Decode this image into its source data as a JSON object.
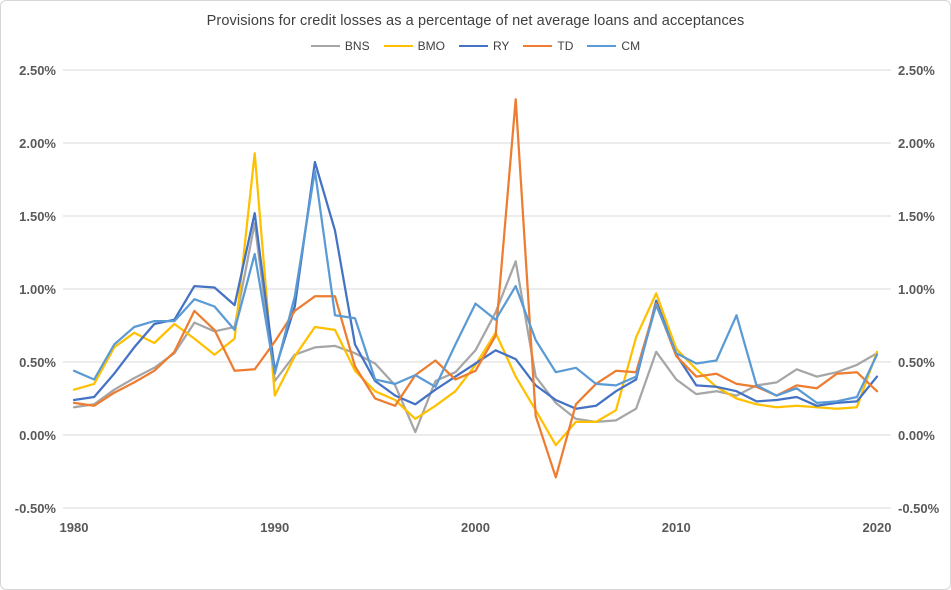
{
  "chart_data": {
    "type": "line",
    "title": "Provisions for credit losses as a percentage of net average loans and acceptances",
    "grid": true,
    "legend_position": "top",
    "gridline_color": "#d9d9d9",
    "tick_label_color": "#595959",
    "x": [
      1980,
      1981,
      1982,
      1983,
      1984,
      1985,
      1986,
      1987,
      1988,
      1989,
      1990,
      1991,
      1992,
      1993,
      1994,
      1995,
      1996,
      1997,
      1998,
      1999,
      2000,
      2001,
      2002,
      2003,
      2004,
      2005,
      2006,
      2007,
      2008,
      2009,
      2010,
      2011,
      2012,
      2013,
      2014,
      2015,
      2016,
      2017,
      2018,
      2019,
      2020
    ],
    "x_axis": {
      "tick_labels": [
        "1980",
        "1990",
        "2000",
        "2010",
        "2020"
      ]
    },
    "y_axis": {
      "min": -0.5,
      "max": 2.5,
      "step": 0.5,
      "unit": "%",
      "tick_labels": [
        "2.50%",
        "2.00%",
        "1.50%",
        "1.00%",
        "0.50%",
        "0.00%",
        "-0.50%"
      ]
    },
    "series": [
      {
        "name": "BNS",
        "color": "#a6a6a6",
        "values": [
          0.19,
          0.21,
          0.31,
          0.39,
          0.46,
          0.56,
          0.77,
          0.71,
          0.74,
          1.45,
          0.37,
          0.55,
          0.6,
          0.61,
          0.56,
          0.49,
          0.34,
          0.02,
          0.37,
          0.43,
          0.58,
          0.84,
          1.19,
          0.4,
          0.22,
          0.11,
          0.09,
          0.1,
          0.18,
          0.57,
          0.38,
          0.28,
          0.3,
          0.27,
          0.34,
          0.36,
          0.45,
          0.4,
          0.43,
          0.48,
          0.56
        ]
      },
      {
        "name": "BMO",
        "color": "#ffc000",
        "values": [
          0.31,
          0.35,
          0.6,
          0.7,
          0.63,
          0.76,
          0.66,
          0.55,
          0.66,
          1.93,
          0.27,
          0.54,
          0.74,
          0.72,
          0.44,
          0.3,
          0.24,
          0.11,
          0.2,
          0.3,
          0.48,
          0.7,
          0.4,
          0.17,
          -0.07,
          0.09,
          0.09,
          0.17,
          0.67,
          0.97,
          0.59,
          0.45,
          0.33,
          0.25,
          0.21,
          0.19,
          0.2,
          0.19,
          0.18,
          0.19,
          0.57
        ]
      },
      {
        "name": "RY",
        "color": "#4472c4",
        "values": [
          0.24,
          0.26,
          0.42,
          0.6,
          0.76,
          0.79,
          1.02,
          1.01,
          0.89,
          1.52,
          0.44,
          0.88,
          1.87,
          1.4,
          0.62,
          0.37,
          0.27,
          0.21,
          0.31,
          0.4,
          0.49,
          0.58,
          0.52,
          0.34,
          0.24,
          0.18,
          0.2,
          0.3,
          0.38,
          0.92,
          0.55,
          0.34,
          0.33,
          0.3,
          0.23,
          0.24,
          0.26,
          0.2,
          0.22,
          0.23,
          0.4
        ]
      },
      {
        "name": "TD",
        "color": "#ed7d31",
        "values": [
          0.22,
          0.2,
          0.29,
          0.36,
          0.44,
          0.57,
          0.85,
          0.72,
          0.44,
          0.45,
          0.64,
          0.85,
          0.95,
          0.95,
          0.47,
          0.25,
          0.2,
          0.41,
          0.51,
          0.38,
          0.44,
          0.68,
          2.3,
          0.13,
          -0.29,
          0.21,
          0.35,
          0.44,
          0.43,
          0.9,
          0.54,
          0.4,
          0.42,
          0.35,
          0.33,
          0.27,
          0.34,
          0.32,
          0.42,
          0.43,
          0.3
        ]
      },
      {
        "name": "CM",
        "color": "#5b9bd5",
        "values": [
          0.44,
          0.38,
          0.62,
          0.74,
          0.78,
          0.78,
          0.93,
          0.88,
          0.72,
          1.24,
          0.42,
          0.95,
          1.81,
          0.82,
          0.8,
          0.38,
          0.35,
          0.41,
          0.33,
          0.62,
          0.9,
          0.79,
          1.02,
          0.65,
          0.43,
          0.46,
          0.35,
          0.34,
          0.4,
          0.89,
          0.56,
          0.49,
          0.51,
          0.82,
          0.34,
          0.27,
          0.32,
          0.22,
          0.23,
          0.26,
          0.55
        ]
      }
    ]
  }
}
